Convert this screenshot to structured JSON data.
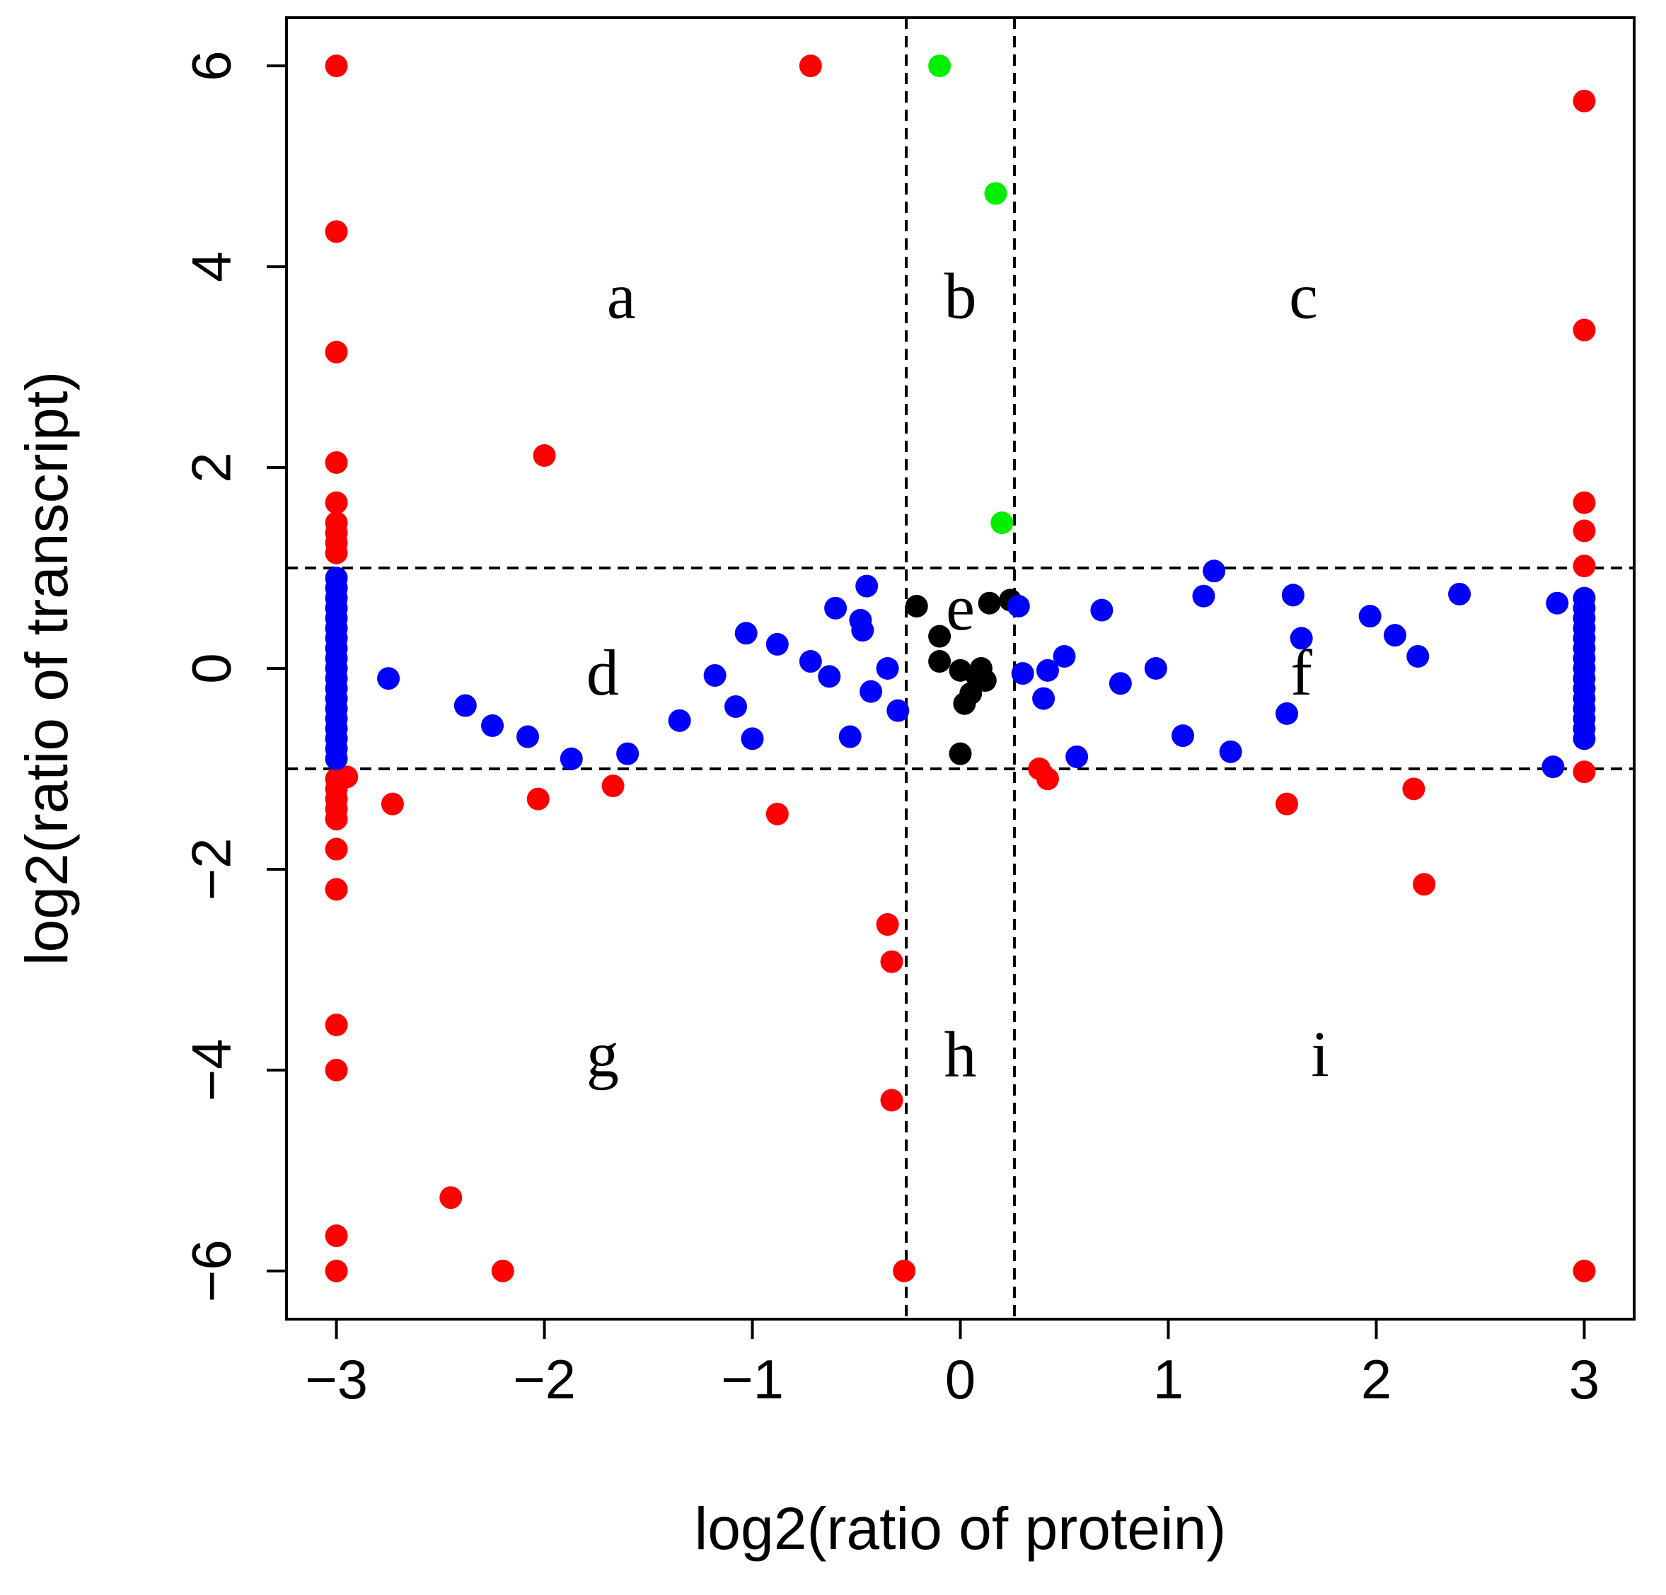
{
  "chart_data": {
    "type": "scatter",
    "title": "",
    "xlabel": "log2(ratio of protein)",
    "ylabel": "log2(ratio of transcript)",
    "xlim": [
      -3.24,
      3.24
    ],
    "ylim": [
      -6.48,
      6.48
    ],
    "x_ticks": [
      -3,
      -2,
      -1,
      0,
      1,
      2,
      3
    ],
    "x_tick_labels": [
      "−3",
      "−2",
      "−1",
      "0",
      "1",
      "2",
      "3"
    ],
    "y_ticks": [
      -6,
      -4,
      -2,
      0,
      2,
      4,
      6
    ],
    "y_tick_labels": [
      "−6",
      "−4",
      "−2",
      "0",
      "2",
      "4",
      "6"
    ],
    "grid": false,
    "thresholds": {
      "x": [
        -0.26,
        0.26
      ],
      "y": [
        -1,
        1
      ]
    },
    "region_labels": [
      {
        "text": "a",
        "x": -1.63,
        "y": 3.7
      },
      {
        "text": "b",
        "x": 0.0,
        "y": 3.7
      },
      {
        "text": "c",
        "x": 1.65,
        "y": 3.7
      },
      {
        "text": "d",
        "x": -1.72,
        "y": -0.05
      },
      {
        "text": "e",
        "x": 0.0,
        "y": 0.6
      },
      {
        "text": "f",
        "x": 1.64,
        "y": -0.05
      },
      {
        "text": "g",
        "x": -1.72,
        "y": -3.85
      },
      {
        "text": "h",
        "x": 0.0,
        "y": -3.85
      },
      {
        "text": "i",
        "x": 1.73,
        "y": -3.85
      }
    ],
    "series": [
      {
        "name": "red",
        "color": "#ff0000",
        "points": [
          [
            -3,
            6
          ],
          [
            -3,
            4.35
          ],
          [
            -3,
            3.15
          ],
          [
            -3,
            2.05
          ],
          [
            -3,
            1.65
          ],
          [
            -3,
            1.45
          ],
          [
            -3,
            1.35
          ],
          [
            -3,
            1.25
          ],
          [
            -3,
            1.15
          ],
          [
            -3,
            -1.1
          ],
          [
            -3,
            -1.2
          ],
          [
            -3,
            -1.3
          ],
          [
            -3,
            -1.4
          ],
          [
            -3,
            -1.5
          ],
          [
            -3,
            -1.8
          ],
          [
            -3,
            -2.2
          ],
          [
            -3,
            -3.55
          ],
          [
            -3,
            -4.0
          ],
          [
            -3,
            -5.65
          ],
          [
            -3,
            -6
          ],
          [
            -2.95,
            -1.08
          ],
          [
            -2.73,
            -1.35
          ],
          [
            -0.72,
            6
          ],
          [
            -2.0,
            2.12
          ],
          [
            -2.03,
            -1.3
          ],
          [
            -1.67,
            -1.17
          ],
          [
            -0.88,
            -1.45
          ],
          [
            -0.35,
            -2.55
          ],
          [
            -0.33,
            -2.92
          ],
          [
            -0.33,
            -4.3
          ],
          [
            -0.27,
            -6
          ],
          [
            -2.45,
            -5.27
          ],
          [
            -2.2,
            -6
          ],
          [
            0.38,
            -1.0
          ],
          [
            0.42,
            -1.1
          ],
          [
            1.57,
            -1.35
          ],
          [
            2.18,
            -1.2
          ],
          [
            2.23,
            -2.15
          ],
          [
            3,
            5.65
          ],
          [
            3,
            3.37
          ],
          [
            3,
            1.65
          ],
          [
            3,
            1.37
          ],
          [
            3,
            1.02
          ],
          [
            3,
            -1.03
          ],
          [
            3,
            -6
          ]
        ]
      },
      {
        "name": "green",
        "color": "#00ee00",
        "points": [
          [
            -0.1,
            6
          ],
          [
            0.17,
            4.73
          ],
          [
            0.2,
            1.45
          ]
        ]
      },
      {
        "name": "black",
        "color": "#000000",
        "points": [
          [
            -0.21,
            0.62
          ],
          [
            -0.1,
            0.32
          ],
          [
            -0.1,
            0.07
          ],
          [
            0.0,
            -0.02
          ],
          [
            0.1,
            0.0
          ],
          [
            0.08,
            -0.08
          ],
          [
            0.12,
            -0.12
          ],
          [
            0.05,
            -0.25
          ],
          [
            0.02,
            -0.35
          ],
          [
            0.0,
            -0.85
          ],
          [
            0.14,
            0.65
          ],
          [
            0.24,
            0.68
          ]
        ]
      },
      {
        "name": "blue",
        "color": "#0000ff",
        "points": [
          [
            -3,
            0.9
          ],
          [
            -3,
            0.8
          ],
          [
            -3,
            0.7
          ],
          [
            -3,
            0.6
          ],
          [
            -3,
            0.5
          ],
          [
            -3,
            0.4
          ],
          [
            -3,
            0.3
          ],
          [
            -3,
            0.2
          ],
          [
            -3,
            0.1
          ],
          [
            -3,
            0.0
          ],
          [
            -3,
            -0.1
          ],
          [
            -3,
            -0.2
          ],
          [
            -3,
            -0.3
          ],
          [
            -3,
            -0.4
          ],
          [
            -3,
            -0.5
          ],
          [
            -3,
            -0.6
          ],
          [
            -3,
            -0.7
          ],
          [
            -3,
            -0.8
          ],
          [
            -3,
            -0.9
          ],
          [
            -2.75,
            -0.1
          ],
          [
            -2.38,
            -0.37
          ],
          [
            -2.25,
            -0.57
          ],
          [
            -2.08,
            -0.68
          ],
          [
            -1.87,
            -0.9
          ],
          [
            -1.6,
            -0.85
          ],
          [
            -1.35,
            -0.52
          ],
          [
            -1.18,
            -0.07
          ],
          [
            -1.08,
            -0.38
          ],
          [
            -1.03,
            0.35
          ],
          [
            -1.0,
            -0.7
          ],
          [
            -0.88,
            0.24
          ],
          [
            -0.72,
            0.07
          ],
          [
            -0.63,
            -0.08
          ],
          [
            -0.6,
            0.6
          ],
          [
            -0.53,
            -0.68
          ],
          [
            -0.48,
            0.48
          ],
          [
            -0.47,
            0.38
          ],
          [
            -0.45,
            0.82
          ],
          [
            -0.43,
            -0.23
          ],
          [
            -0.35,
            0.0
          ],
          [
            -0.3,
            -0.42
          ],
          [
            0.28,
            0.62
          ],
          [
            0.3,
            -0.05
          ],
          [
            0.4,
            -0.3
          ],
          [
            0.42,
            -0.02
          ],
          [
            0.5,
            0.12
          ],
          [
            0.56,
            -0.88
          ],
          [
            0.68,
            0.58
          ],
          [
            0.77,
            -0.15
          ],
          [
            0.94,
            0.0
          ],
          [
            1.07,
            -0.67
          ],
          [
            1.17,
            0.72
          ],
          [
            1.22,
            0.97
          ],
          [
            1.3,
            -0.83
          ],
          [
            1.57,
            -0.45
          ],
          [
            1.6,
            0.73
          ],
          [
            1.64,
            0.3
          ],
          [
            1.97,
            0.52
          ],
          [
            2.09,
            0.33
          ],
          [
            2.2,
            0.12
          ],
          [
            2.4,
            0.74
          ],
          [
            2.85,
            -0.98
          ],
          [
            2.87,
            0.65
          ],
          [
            3,
            0.7
          ],
          [
            3,
            0.6
          ],
          [
            3,
            0.5
          ],
          [
            3,
            0.4
          ],
          [
            3,
            0.3
          ],
          [
            3,
            0.2
          ],
          [
            3,
            0.1
          ],
          [
            3,
            0.0
          ],
          [
            3,
            -0.1
          ],
          [
            3,
            -0.2
          ],
          [
            3,
            -0.3
          ],
          [
            3,
            -0.4
          ],
          [
            3,
            -0.5
          ],
          [
            3,
            -0.6
          ],
          [
            3,
            -0.7
          ]
        ]
      }
    ]
  }
}
